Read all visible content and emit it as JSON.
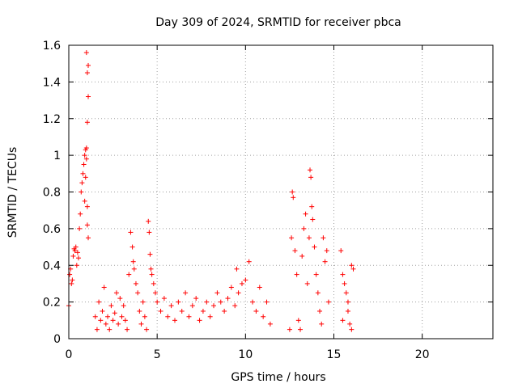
{
  "chart_data": {
    "type": "scatter",
    "title": "Day 309 of 2024, SRMTID for receiver pbca",
    "xlabel": "GPS time / hours",
    "ylabel": "SRMTID / TECUs",
    "xlim": [
      0,
      24
    ],
    "ylim": [
      0,
      1.6
    ],
    "xticks": [
      0,
      5,
      10,
      15,
      20
    ],
    "xtick_labels": [
      "0",
      "5",
      "10",
      "15",
      "20"
    ],
    "yticks": [
      0,
      0.2,
      0.4,
      0.6,
      0.8,
      1.0,
      1.2,
      1.4,
      1.6
    ],
    "ytick_labels": [
      "0",
      "0.2",
      "0.4",
      "0.6",
      "0.8",
      "1",
      "1.2",
      "1.4",
      "1.6"
    ],
    "grid": true,
    "legend": "none",
    "marker": "plus",
    "color": "#ff0000",
    "series": [
      {
        "x": [
          0.0,
          0.05,
          0.1,
          0.15,
          0.2,
          0.25,
          0.3,
          0.35,
          0.4,
          0.45,
          0.5,
          0.55,
          0.6,
          0.65,
          0.7,
          0.75,
          0.8,
          0.85,
          0.9,
          0.95,
          1.0,
          1.05,
          1.1,
          0.9,
          0.95,
          1.0,
          1.05,
          1.1,
          1.0,
          1.05,
          1.05,
          1.1,
          1.5,
          1.6,
          1.7,
          1.8,
          1.9,
          2.0,
          2.1,
          2.2,
          2.3,
          2.4,
          2.5,
          2.6,
          2.7,
          2.8,
          2.9,
          3.0,
          3.1,
          3.2,
          3.3,
          3.4,
          3.5,
          3.6,
          3.65,
          3.7,
          3.8,
          3.9,
          4.0,
          4.1,
          4.2,
          4.3,
          4.4,
          4.5,
          4.55,
          4.6,
          4.65,
          4.7,
          4.8,
          4.9,
          5.0,
          5.2,
          5.4,
          5.6,
          5.8,
          6.0,
          6.2,
          6.4,
          6.6,
          6.8,
          7.0,
          7.2,
          7.4,
          7.6,
          7.8,
          8.0,
          8.2,
          8.4,
          8.6,
          8.8,
          9.0,
          9.2,
          9.4,
          9.6,
          9.8,
          9.5,
          10.0,
          10.2,
          10.4,
          10.6,
          10.8,
          11.0,
          11.2,
          11.4,
          12.5,
          12.6,
          12.65,
          12.7,
          12.8,
          12.9,
          13.0,
          13.1,
          13.2,
          13.3,
          13.4,
          13.5,
          13.6,
          13.65,
          13.7,
          13.75,
          13.8,
          13.9,
          14.0,
          14.1,
          14.2,
          14.3,
          14.4,
          14.5,
          14.6,
          14.7,
          15.4,
          15.5,
          15.6,
          15.7,
          15.8,
          15.9,
          16.0,
          16.1,
          15.5,
          15.8,
          16.0
        ],
        "y": [
          0.18,
          0.35,
          0.38,
          0.3,
          0.32,
          0.45,
          0.49,
          0.48,
          0.5,
          0.4,
          0.47,
          0.44,
          0.6,
          0.68,
          0.8,
          0.85,
          0.9,
          0.95,
          1.0,
          1.03,
          1.04,
          1.18,
          1.32,
          0.75,
          0.88,
          0.98,
          1.45,
          1.49,
          1.56,
          0.72,
          0.62,
          0.55,
          0.12,
          0.05,
          0.2,
          0.1,
          0.15,
          0.28,
          0.08,
          0.12,
          0.05,
          0.18,
          0.1,
          0.14,
          0.25,
          0.08,
          0.22,
          0.12,
          0.18,
          0.1,
          0.05,
          0.35,
          0.58,
          0.5,
          0.42,
          0.38,
          0.3,
          0.25,
          0.15,
          0.08,
          0.2,
          0.12,
          0.05,
          0.64,
          0.58,
          0.46,
          0.38,
          0.35,
          0.3,
          0.25,
          0.2,
          0.15,
          0.22,
          0.12,
          0.18,
          0.1,
          0.2,
          0.15,
          0.25,
          0.12,
          0.18,
          0.22,
          0.1,
          0.15,
          0.2,
          0.12,
          0.18,
          0.25,
          0.2,
          0.15,
          0.22,
          0.28,
          0.18,
          0.25,
          0.3,
          0.38,
          0.32,
          0.42,
          0.2,
          0.15,
          0.28,
          0.12,
          0.2,
          0.08,
          0.05,
          0.55,
          0.8,
          0.77,
          0.48,
          0.35,
          0.1,
          0.05,
          0.45,
          0.6,
          0.68,
          0.3,
          0.55,
          0.92,
          0.88,
          0.72,
          0.65,
          0.5,
          0.35,
          0.25,
          0.15,
          0.08,
          0.55,
          0.42,
          0.48,
          0.2,
          0.48,
          0.35,
          0.3,
          0.25,
          0.15,
          0.08,
          0.4,
          0.38,
          0.1,
          0.2,
          0.05
        ]
      }
    ]
  }
}
